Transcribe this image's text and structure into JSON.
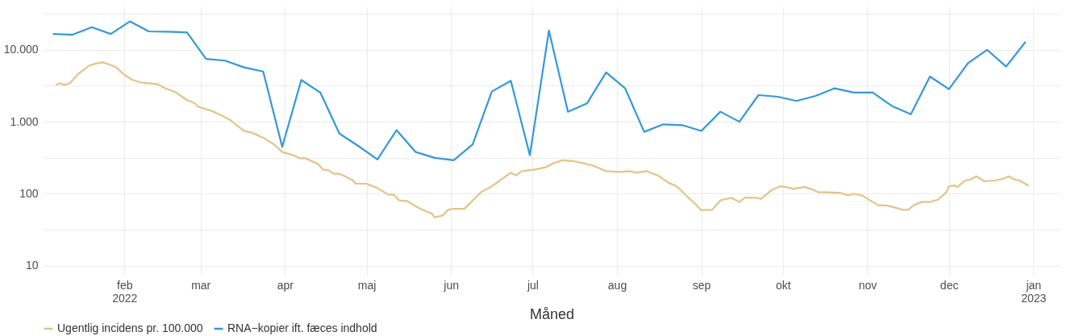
{
  "chart_data": {
    "type": "line",
    "xlabel": "Måned",
    "legend": "bottom",
    "grid": true,
    "log": "y",
    "marker": "none",
    "line_style": "solid",
    "xlim": [
      "2022-01-02",
      "2023-01-11"
    ],
    "xticks": [
      {
        "value": "2022-02-01",
        "label": "feb\n2022"
      },
      {
        "value": "2022-03-01",
        "label": "mar"
      },
      {
        "value": "2022-04-01",
        "label": "apr"
      },
      {
        "value": "2022-05-01",
        "label": "maj"
      },
      {
        "value": "2022-06-01",
        "label": "jun"
      },
      {
        "value": "2022-07-01",
        "label": "jul"
      },
      {
        "value": "2022-08-01",
        "label": "aug"
      },
      {
        "value": "2022-09-01",
        "label": "sep"
      },
      {
        "value": "2022-10-01",
        "label": "okt"
      },
      {
        "value": "2022-11-01",
        "label": "nov"
      },
      {
        "value": "2022-12-01",
        "label": "dec"
      },
      {
        "value": "2023-01-01",
        "label": "jan\n2023"
      }
    ],
    "ylim": [
      7.5,
      40000
    ],
    "yticks": [
      {
        "value": 10,
        "label": "10"
      },
      {
        "value": 31.6,
        "label": null
      },
      {
        "value": 100,
        "label": "100"
      },
      {
        "value": 316,
        "label": null
      },
      {
        "value": 1000,
        "label": "1.000"
      },
      {
        "value": 3162,
        "label": null
      },
      {
        "value": 10000,
        "label": "10.000"
      },
      {
        "value": 31623,
        "label": null
      }
    ],
    "series": [
      {
        "name": "Ugentlig incidens pr. 100.000",
        "color": "#e5c287",
        "x": [
          "2022-01-07",
          "2022-01-08",
          "2022-01-10",
          "2022-01-12",
          "2022-01-15",
          "2022-01-19",
          "2022-01-22",
          "2022-01-24",
          "2022-01-26",
          "2022-01-29",
          "2022-02-01",
          "2022-02-04",
          "2022-02-07",
          "2022-02-10",
          "2022-02-13",
          "2022-02-16",
          "2022-02-20",
          "2022-02-24",
          "2022-02-27",
          "2022-02-28",
          "2022-03-05",
          "2022-03-09",
          "2022-03-12",
          "2022-03-17",
          "2022-03-20",
          "2022-03-24",
          "2022-03-28",
          "2022-03-31",
          "2022-04-04",
          "2022-04-07",
          "2022-04-08",
          "2022-04-13",
          "2022-04-15",
          "2022-04-17",
          "2022-04-19",
          "2022-04-21",
          "2022-04-23",
          "2022-04-26",
          "2022-04-27",
          "2022-05-01",
          "2022-05-05",
          "2022-05-09",
          "2022-05-11",
          "2022-05-13",
          "2022-05-16",
          "2022-05-18",
          "2022-05-19",
          "2022-05-22",
          "2022-05-25",
          "2022-05-26",
          "2022-05-29",
          "2022-05-31",
          "2022-06-02",
          "2022-06-06",
          "2022-06-09",
          "2022-06-12",
          "2022-06-16",
          "2022-06-19",
          "2022-06-23",
          "2022-06-25",
          "2022-06-27",
          "2022-07-02",
          "2022-07-06",
          "2022-07-09",
          "2022-07-12",
          "2022-07-16",
          "2022-07-19",
          "2022-07-23",
          "2022-07-28",
          "2022-08-02",
          "2022-08-06",
          "2022-08-08",
          "2022-08-12",
          "2022-08-16",
          "2022-08-20",
          "2022-08-23",
          "2022-08-27",
          "2022-08-30",
          "2022-09-01",
          "2022-09-05",
          "2022-09-08",
          "2022-09-12",
          "2022-09-15",
          "2022-09-17",
          "2022-09-21",
          "2022-09-23",
          "2022-09-27",
          "2022-09-30",
          "2022-10-02",
          "2022-10-05",
          "2022-10-09",
          "2022-10-12",
          "2022-10-14",
          "2022-10-17",
          "2022-10-22",
          "2022-10-25",
          "2022-10-27",
          "2022-10-30",
          "2022-11-02",
          "2022-11-05",
          "2022-11-08",
          "2022-11-12",
          "2022-11-14",
          "2022-11-16",
          "2022-11-18",
          "2022-11-21",
          "2022-11-24",
          "2022-11-27",
          "2022-11-30",
          "2022-12-01",
          "2022-12-03",
          "2022-12-04",
          "2022-12-07",
          "2022-12-09",
          "2022-12-11",
          "2022-12-14",
          "2022-12-18",
          "2022-12-21",
          "2022-12-23",
          "2022-12-25",
          "2022-12-27",
          "2022-12-30"
        ],
        "values": [
          3250,
          3430,
          3250,
          3430,
          4600,
          6010,
          6520,
          6700,
          6340,
          5700,
          4480,
          3810,
          3520,
          3430,
          3340,
          2920,
          2550,
          2000,
          1800,
          1620,
          1420,
          1210,
          1050,
          745,
          706,
          601,
          485,
          381,
          343,
          308,
          316,
          262,
          217,
          212,
          190,
          190,
          175,
          153,
          138,
          138,
          120,
          97,
          97,
          81,
          79,
          71,
          67,
          59,
          53,
          47,
          50,
          60,
          62,
          62,
          81,
          105,
          127,
          153,
          196,
          180,
          206,
          217,
          235,
          269,
          292,
          284,
          269,
          248,
          206,
          201,
          206,
          196,
          206,
          180,
          142,
          127,
          90,
          71,
          59,
          60,
          81,
          88,
          77,
          88,
          88,
          85,
          114,
          127,
          124,
          117,
          124,
          114,
          105,
          105,
          103,
          95,
          100,
          95,
          81,
          69,
          69,
          63,
          60,
          60,
          69,
          77,
          77,
          83,
          105,
          127,
          131,
          124,
          153,
          158,
          175,
          149,
          153,
          162,
          175,
          158,
          153,
          131
        ]
      },
      {
        "name": "RNA−kopier ift. fæces indhold",
        "color": "#3498db",
        "x": [
          "2022-01-06",
          "2022-01-13",
          "2022-01-20",
          "2022-01-27",
          "2022-02-03",
          "2022-02-10",
          "2022-02-17",
          "2022-02-24",
          "2022-03-03",
          "2022-03-10",
          "2022-03-17",
          "2022-03-24",
          "2022-03-31",
          "2022-04-07",
          "2022-04-14",
          "2022-04-21",
          "2022-04-28",
          "2022-05-05",
          "2022-05-12",
          "2022-05-19",
          "2022-05-26",
          "2022-06-02",
          "2022-06-09",
          "2022-06-16",
          "2022-06-23",
          "2022-06-30",
          "2022-07-07",
          "2022-07-14",
          "2022-07-21",
          "2022-07-28",
          "2022-08-04",
          "2022-08-11",
          "2022-08-18",
          "2022-08-25",
          "2022-09-01",
          "2022-09-08",
          "2022-09-15",
          "2022-09-22",
          "2022-09-29",
          "2022-10-06",
          "2022-10-13",
          "2022-10-20",
          "2022-10-27",
          "2022-11-03",
          "2022-11-10",
          "2022-11-17",
          "2022-11-24",
          "2022-12-01",
          "2022-12-08",
          "2022-12-15",
          "2022-12-22",
          "2022-12-29"
        ],
        "values": [
          16600,
          16200,
          20600,
          16600,
          24800,
          18000,
          17800,
          17500,
          7450,
          7070,
          5700,
          4990,
          448,
          3810,
          2550,
          687,
          460,
          300,
          766,
          381,
          316,
          292,
          485,
          2630,
          3710,
          343,
          18500,
          1380,
          1800,
          4850,
          2920,
          725,
          922,
          898,
          745,
          1380,
          1000,
          2350,
          2230,
          1950,
          2290,
          2920,
          2550,
          2550,
          1660,
          1270,
          4250,
          2840,
          6510,
          10000,
          5850,
          12700
        ]
      }
    ]
  }
}
